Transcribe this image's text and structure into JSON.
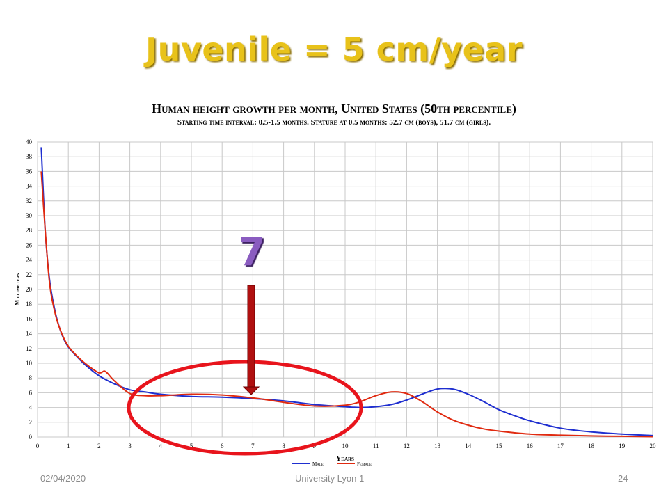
{
  "slide": {
    "title": "Juvenile = 5 cm/year",
    "annotation": "7",
    "footer_date": "02/04/2020",
    "footer_org": "University Lyon 1",
    "footer_page": "24"
  },
  "chart_data": {
    "type": "line",
    "title": "Human height growth per month, United States (50th percentile)",
    "subtitle": "Starting time interval: 0.5-1.5 months. Stature at 0.5 months: 52.7 cm (boys), 51.7 cm (girls).",
    "xlabel": "Years",
    "ylabel": "Millimeters",
    "xlim": [
      0,
      20
    ],
    "ylim": [
      0,
      40
    ],
    "x_ticks": [
      0,
      1,
      2,
      3,
      4,
      5,
      6,
      7,
      8,
      9,
      10,
      11,
      12,
      13,
      14,
      15,
      16,
      17,
      18,
      19,
      20
    ],
    "y_ticks": [
      0,
      2,
      4,
      6,
      8,
      10,
      12,
      14,
      16,
      18,
      20,
      22,
      24,
      26,
      28,
      30,
      32,
      34,
      36,
      38,
      40
    ],
    "grid": true,
    "legend_position": "bottom-center",
    "series": [
      {
        "name": "Male",
        "color": "#1f2fd0",
        "x": [
          0.12,
          0.25,
          0.4,
          0.6,
          0.8,
          1.0,
          1.3,
          1.6,
          2.0,
          2.5,
          3.0,
          3.5,
          4.0,
          5.0,
          6.0,
          7.0,
          8.0,
          9.0,
          10.0,
          10.5,
          11.0,
          11.5,
          12.0,
          12.5,
          13.0,
          13.5,
          14.0,
          14.5,
          15.0,
          15.5,
          16.0,
          17.0,
          18.0,
          19.0,
          20.0
        ],
        "values": [
          39.3,
          28.0,
          21.0,
          16.5,
          13.8,
          12.2,
          10.8,
          9.6,
          8.3,
          7.2,
          6.4,
          6.1,
          5.8,
          5.5,
          5.4,
          5.2,
          4.9,
          4.4,
          4.1,
          4.0,
          4.1,
          4.4,
          5.0,
          5.8,
          6.5,
          6.5,
          5.8,
          4.8,
          3.7,
          2.9,
          2.2,
          1.2,
          0.7,
          0.4,
          0.2
        ]
      },
      {
        "name": "Female",
        "color": "#e02a10",
        "x": [
          0.12,
          0.25,
          0.4,
          0.6,
          0.8,
          1.0,
          1.3,
          1.6,
          2.0,
          2.2,
          2.5,
          3.0,
          3.5,
          4.0,
          5.0,
          6.0,
          7.0,
          8.0,
          9.0,
          10.0,
          10.5,
          11.0,
          11.5,
          12.0,
          12.5,
          13.0,
          13.5,
          14.0,
          14.5,
          15.0,
          16.0,
          17.0,
          18.0,
          19.0,
          20.0
        ],
        "values": [
          36.0,
          28.0,
          20.5,
          16.3,
          13.9,
          12.3,
          10.9,
          9.8,
          8.7,
          8.9,
          7.6,
          5.9,
          5.6,
          5.6,
          5.8,
          5.7,
          5.3,
          4.7,
          4.2,
          4.3,
          4.8,
          5.6,
          6.1,
          5.9,
          4.8,
          3.4,
          2.3,
          1.6,
          1.1,
          0.8,
          0.4,
          0.25,
          0.15,
          0.1,
          0.05
        ]
      }
    ]
  }
}
